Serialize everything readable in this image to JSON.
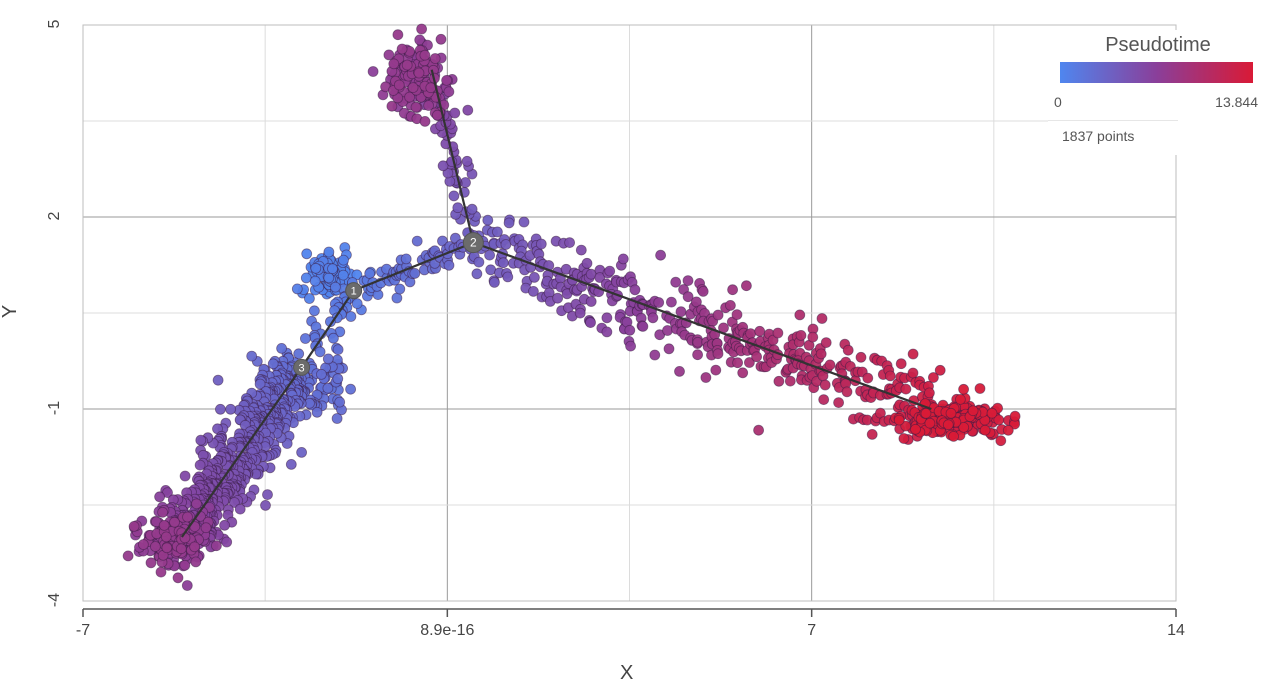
{
  "chart_data": {
    "type": "scatter",
    "title": "",
    "xlabel": "X",
    "ylabel": "Y",
    "xlim": [
      -7,
      14
    ],
    "ylim": [
      -4,
      5
    ],
    "x_ticks": [
      "-7",
      "8.9e-16",
      "7",
      "14"
    ],
    "y_ticks": [
      "5",
      "2",
      "-1",
      "-4"
    ],
    "grid": true,
    "color_scale": {
      "title": "Pseudotime",
      "min": 0,
      "max": 13.844,
      "min_label": "0",
      "max_label": "13.844",
      "color_low": "#4f86ef",
      "color_mid": "#8a3f9a",
      "color_high": "#d91a36"
    },
    "point_count_label": "1837 points",
    "trajectory": {
      "nodes": [
        {
          "label": "1",
          "x": -1.8,
          "y": 0.85
        },
        {
          "label": "2",
          "x": 0.5,
          "y": 1.6
        },
        {
          "label": "3",
          "x": -2.8,
          "y": -0.35
        },
        {
          "label": "",
          "x": -0.3,
          "y": 4.3
        },
        {
          "label": "",
          "x": 9.3,
          "y": -1.0
        },
        {
          "label": "",
          "x": -5.1,
          "y": -3.0
        }
      ],
      "edges": [
        [
          3,
          1
        ],
        [
          1,
          0
        ],
        [
          1,
          4
        ],
        [
          0,
          2
        ],
        [
          2,
          5
        ]
      ]
    },
    "clusters": [
      {
        "name": "top-branch-cluster",
        "x": -0.55,
        "y": 4.2,
        "sx": 0.28,
        "sy": 0.3,
        "n": 170,
        "t_min": 7.0,
        "t_max": 8.0
      },
      {
        "name": "bottom-left-cluster",
        "x": -5.2,
        "y": -3.05,
        "sx": 0.35,
        "sy": 0.22,
        "n": 180,
        "t_min": 7.0,
        "t_max": 8.0
      },
      {
        "name": "right-end-cluster",
        "x": 9.7,
        "y": -1.15,
        "sx": 0.45,
        "sy": 0.12,
        "n": 200,
        "t_min": 13.0,
        "t_max": 13.844
      },
      {
        "name": "root-cluster",
        "x": -2.3,
        "y": 1.1,
        "sx": 0.22,
        "sy": 0.17,
        "n": 90,
        "t_min": 0.0,
        "t_max": 0.6
      },
      {
        "name": "side-blob",
        "x": -2.2,
        "y": -0.55,
        "sx": 0.16,
        "sy": 0.2,
        "n": 35,
        "t_min": 1.8,
        "t_max": 2.4
      }
    ],
    "branches": [
      {
        "name": "branch-1-2",
        "from": [
          -1.8,
          0.85
        ],
        "to": [
          0.5,
          1.6
        ],
        "spread": 0.12,
        "n": 70,
        "t_from": 1.0,
        "t_to": 3.5
      },
      {
        "name": "branch-2-top",
        "from": [
          0.5,
          1.6
        ],
        "to": [
          -0.3,
          4.3
        ],
        "spread": 0.12,
        "n": 60,
        "t_from": 3.5,
        "t_to": 7.0
      },
      {
        "name": "branch-2-right",
        "from": [
          0.5,
          1.6
        ],
        "to": [
          9.3,
          -1.0
        ],
        "spread": 0.3,
        "n": 420,
        "t_from": 3.5,
        "t_to": 13.0
      },
      {
        "name": "branch-1-3",
        "from": [
          -1.8,
          0.85
        ],
        "to": [
          -2.8,
          -0.35
        ],
        "spread": 0.15,
        "n": 40,
        "t_from": 1.0,
        "t_to": 2.0
      },
      {
        "name": "branch-3-bottom",
        "from": [
          -2.8,
          -0.35
        ],
        "to": [
          -5.1,
          -3.0
        ],
        "spread": 0.28,
        "n": 572,
        "t_from": 2.0,
        "t_to": 7.0
      }
    ]
  }
}
